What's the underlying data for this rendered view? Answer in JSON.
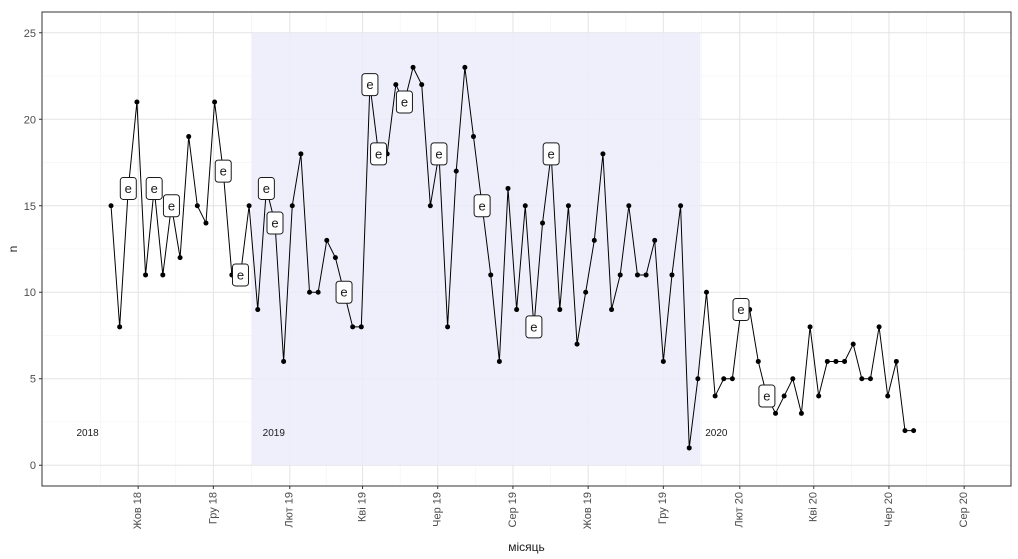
{
  "chart_data": {
    "type": "line",
    "xlabel": "місяць",
    "ylabel": "n",
    "ylim": [
      -1.2,
      26.2
    ],
    "yticks": [
      0,
      5,
      10,
      15,
      20,
      25
    ],
    "x_start": "2018-07-15",
    "x_end": "2020-09-08",
    "x_ticks": [
      {
        "date": "2018-10-01",
        "label": "Жов 18"
      },
      {
        "date": "2018-12-01",
        "label": "Гру 18"
      },
      {
        "date": "2019-02-01",
        "label": "Лют 19"
      },
      {
        "date": "2019-04-01",
        "label": "Кві 19"
      },
      {
        "date": "2019-06-01",
        "label": "Чер 19"
      },
      {
        "date": "2019-08-01",
        "label": "Сер 19"
      },
      {
        "date": "2019-10-01",
        "label": "Жов 19"
      },
      {
        "date": "2019-12-01",
        "label": "Гру 19"
      },
      {
        "date": "2020-02-01",
        "label": "Лют 20"
      },
      {
        "date": "2020-04-01",
        "label": "Кві 20"
      },
      {
        "date": "2020-06-01",
        "label": "Чер 20"
      },
      {
        "date": "2020-08-01",
        "label": "Сер 20"
      }
    ],
    "grid": true,
    "highlight_region": {
      "start": "2019-01-01",
      "end": "2019-12-31",
      "ymin": 0,
      "ymax": 25,
      "color": "#ececfc"
    },
    "year_labels": [
      {
        "label": "2018",
        "date": "2018-08-21",
        "y": 1.9
      },
      {
        "label": "2019",
        "date": "2019-01-19",
        "y": 1.9
      },
      {
        "label": "2020",
        "date": "2020-01-13",
        "y": 1.9
      }
    ],
    "series": [
      {
        "color": "#000000",
        "points": [
          {
            "date": "2018-09-09",
            "value": 15
          },
          {
            "date": "2018-09-16",
            "value": 8
          },
          {
            "date": "2018-09-23",
            "value": 16,
            "label": "e"
          },
          {
            "date": "2018-09-30",
            "value": 21
          },
          {
            "date": "2018-10-07",
            "value": 11
          },
          {
            "date": "2018-10-14",
            "value": 16,
            "label": "e"
          },
          {
            "date": "2018-10-21",
            "value": 11
          },
          {
            "date": "2018-10-28",
            "value": 15,
            "label": "e"
          },
          {
            "date": "2018-11-04",
            "value": 12
          },
          {
            "date": "2018-11-11",
            "value": 19
          },
          {
            "date": "2018-11-18",
            "value": 15
          },
          {
            "date": "2018-11-25",
            "value": 14
          },
          {
            "date": "2018-12-02",
            "value": 21
          },
          {
            "date": "2018-12-09",
            "value": 17,
            "label": "e"
          },
          {
            "date": "2018-12-16",
            "value": 11
          },
          {
            "date": "2018-12-23",
            "value": 11,
            "label": "e"
          },
          {
            "date": "2018-12-30",
            "value": 15
          },
          {
            "date": "2019-01-06",
            "value": 9
          },
          {
            "date": "2019-01-13",
            "value": 16,
            "label": "e"
          },
          {
            "date": "2019-01-20",
            "value": 14,
            "label": "e"
          },
          {
            "date": "2019-01-27",
            "value": 6
          },
          {
            "date": "2019-02-03",
            "value": 15
          },
          {
            "date": "2019-02-10",
            "value": 18
          },
          {
            "date": "2019-02-17",
            "value": 10
          },
          {
            "date": "2019-02-24",
            "value": 10
          },
          {
            "date": "2019-03-03",
            "value": 13
          },
          {
            "date": "2019-03-10",
            "value": 12
          },
          {
            "date": "2019-03-17",
            "value": 10,
            "label": "e"
          },
          {
            "date": "2019-03-24",
            "value": 8
          },
          {
            "date": "2019-03-31",
            "value": 8
          },
          {
            "date": "2019-04-07",
            "value": 22,
            "label": "e"
          },
          {
            "date": "2019-04-14",
            "value": 18,
            "label": "e"
          },
          {
            "date": "2019-04-21",
            "value": 18
          },
          {
            "date": "2019-04-28",
            "value": 22
          },
          {
            "date": "2019-05-05",
            "value": 21,
            "label": "e"
          },
          {
            "date": "2019-05-12",
            "value": 23
          },
          {
            "date": "2019-05-19",
            "value": 22
          },
          {
            "date": "2019-05-26",
            "value": 15
          },
          {
            "date": "2019-06-02",
            "value": 18,
            "label": "e"
          },
          {
            "date": "2019-06-09",
            "value": 8
          },
          {
            "date": "2019-06-16",
            "value": 17
          },
          {
            "date": "2019-06-23",
            "value": 23
          },
          {
            "date": "2019-06-30",
            "value": 19
          },
          {
            "date": "2019-07-07",
            "value": 15,
            "label": "e"
          },
          {
            "date": "2019-07-14",
            "value": 11
          },
          {
            "date": "2019-07-21",
            "value": 6
          },
          {
            "date": "2019-07-28",
            "value": 16
          },
          {
            "date": "2019-08-04",
            "value": 9
          },
          {
            "date": "2019-08-11",
            "value": 15
          },
          {
            "date": "2019-08-18",
            "value": 8,
            "label": "e"
          },
          {
            "date": "2019-08-25",
            "value": 14
          },
          {
            "date": "2019-09-01",
            "value": 18,
            "label": "e"
          },
          {
            "date": "2019-09-08",
            "value": 9
          },
          {
            "date": "2019-09-15",
            "value": 15
          },
          {
            "date": "2019-09-22",
            "value": 7
          },
          {
            "date": "2019-09-29",
            "value": 10
          },
          {
            "date": "2019-10-06",
            "value": 13
          },
          {
            "date": "2019-10-13",
            "value": 18
          },
          {
            "date": "2019-10-20",
            "value": 9
          },
          {
            "date": "2019-10-27",
            "value": 11
          },
          {
            "date": "2019-11-03",
            "value": 15
          },
          {
            "date": "2019-11-10",
            "value": 11
          },
          {
            "date": "2019-11-17",
            "value": 11
          },
          {
            "date": "2019-11-24",
            "value": 13
          },
          {
            "date": "2019-12-01",
            "value": 6
          },
          {
            "date": "2019-12-08",
            "value": 11
          },
          {
            "date": "2019-12-15",
            "value": 15
          },
          {
            "date": "2019-12-22",
            "value": 1
          },
          {
            "date": "2019-12-29",
            "value": 5
          },
          {
            "date": "2020-01-05",
            "value": 10
          },
          {
            "date": "2020-01-12",
            "value": 4
          },
          {
            "date": "2020-01-19",
            "value": 5
          },
          {
            "date": "2020-01-26",
            "value": 5
          },
          {
            "date": "2020-02-02",
            "value": 9,
            "label": "e"
          },
          {
            "date": "2020-02-09",
            "value": 9
          },
          {
            "date": "2020-02-16",
            "value": 6
          },
          {
            "date": "2020-02-23",
            "value": 4,
            "label": "e"
          },
          {
            "date": "2020-03-01",
            "value": 3
          },
          {
            "date": "2020-03-08",
            "value": 4
          },
          {
            "date": "2020-03-15",
            "value": 5
          },
          {
            "date": "2020-03-22",
            "value": 3
          },
          {
            "date": "2020-03-29",
            "value": 8
          },
          {
            "date": "2020-04-05",
            "value": 4
          },
          {
            "date": "2020-04-12",
            "value": 6
          },
          {
            "date": "2020-04-19",
            "value": 6
          },
          {
            "date": "2020-04-26",
            "value": 6
          },
          {
            "date": "2020-05-03",
            "value": 7
          },
          {
            "date": "2020-05-10",
            "value": 5
          },
          {
            "date": "2020-05-17",
            "value": 5
          },
          {
            "date": "2020-05-24",
            "value": 8
          },
          {
            "date": "2020-05-31",
            "value": 4
          },
          {
            "date": "2020-06-07",
            "value": 6
          },
          {
            "date": "2020-06-14",
            "value": 2
          },
          {
            "date": "2020-06-21",
            "value": 2
          }
        ]
      }
    ]
  }
}
